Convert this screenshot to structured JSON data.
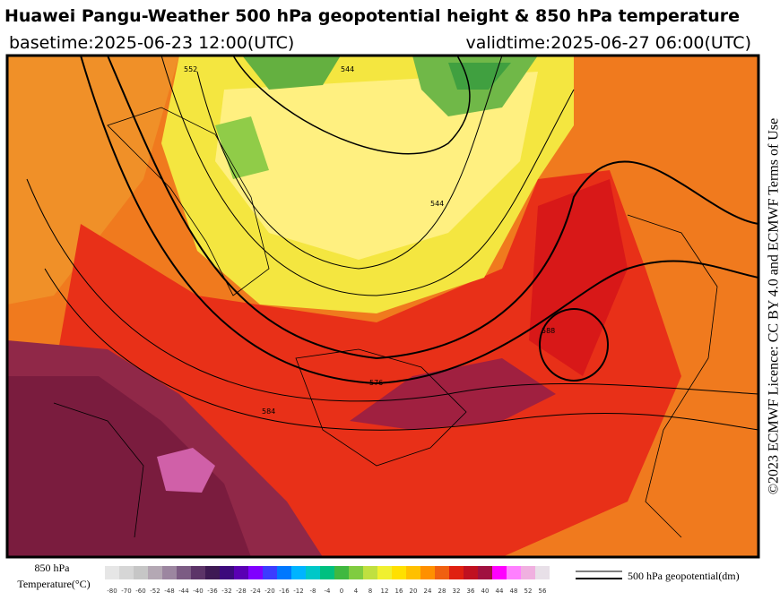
{
  "header": {
    "title": "Huawei Pangu-Weather 500 hPa geopotential height & 850 hPa temperature",
    "basetime": "basetime:2025-06-23 12:00(UTC)",
    "validtime": "validtime:2025-06-27 06:00(UTC)"
  },
  "licence": "©2023 ECMWF Licence: CC BY 4.0 and ECMWF Terms of Use",
  "map": {
    "contour_labels": [
      "544",
      "544",
      "552",
      "576",
      "584",
      "588"
    ]
  },
  "legend": {
    "temperature_label": [
      "850 hPa",
      "Temperature(°C)"
    ],
    "ticks": [
      -80,
      -70,
      -60,
      -52,
      -48,
      -44,
      -40,
      -36,
      -32,
      -28,
      -24,
      -20,
      -16,
      -12,
      -8,
      -4,
      0,
      4,
      8,
      12,
      16,
      20,
      24,
      28,
      32,
      36,
      40,
      44,
      48,
      52,
      56
    ],
    "colors": [
      "#e6e6e6",
      "#d6d6d6",
      "#c6c6c6",
      "#b4a8b4",
      "#9c86a0",
      "#7c5c84",
      "#5c3468",
      "#3e1a54",
      "#3c0a7c",
      "#5a00b4",
      "#8000ff",
      "#3c3cff",
      "#0078ff",
      "#00b4ff",
      "#00c8c8",
      "#00c080",
      "#40b840",
      "#80cc40",
      "#c0e040",
      "#f0f030",
      "#ffe000",
      "#ffc000",
      "#ff9000",
      "#f06010",
      "#e02010",
      "#c01020",
      "#a01040",
      "#ff00ff",
      "#ff80ff",
      "#f0b0e0",
      "#e8e0e8"
    ],
    "contour_label": "500 hPa geopotential(dm)"
  }
}
